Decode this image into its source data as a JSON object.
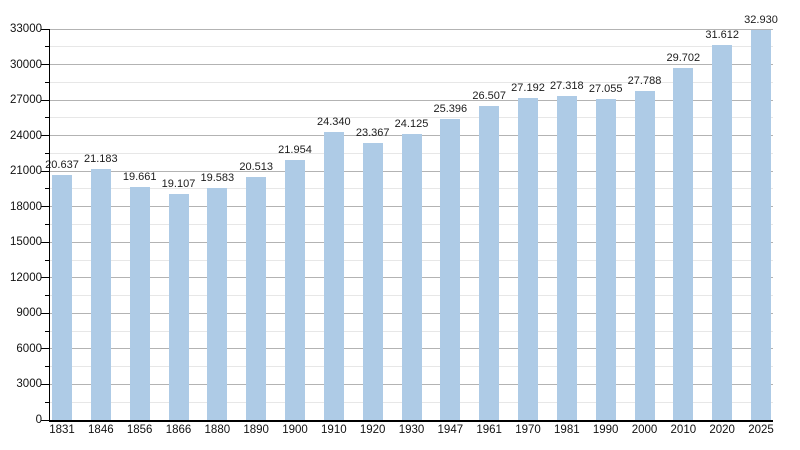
{
  "chart_data": {
    "type": "bar",
    "title": "",
    "xlabel": "",
    "ylabel": "",
    "categories": [
      "1831",
      "1846",
      "1856",
      "1866",
      "1880",
      "1890",
      "1900",
      "1910",
      "1920",
      "1930",
      "1947",
      "1961",
      "1970",
      "1981",
      "1990",
      "2000",
      "2010",
      "2020",
      "2025"
    ],
    "values": [
      20637,
      21183,
      19661,
      19107,
      19583,
      20513,
      21954,
      24340,
      23367,
      24125,
      25396,
      26507,
      27192,
      27318,
      27055,
      27788,
      29702,
      31612,
      32930
    ],
    "value_labels": [
      "20.637",
      "21.183",
      "19.661",
      "19.107",
      "19.583",
      "20.513",
      "21.954",
      "24.340",
      "23.367",
      "24.125",
      "25.396",
      "26.507",
      "27.192",
      "27.318",
      "27.055",
      "27.788",
      "29.702",
      "31.612",
      "32.930"
    ],
    "ylim": [
      0,
      33000
    ],
    "y_major_step": 3000,
    "y_minor_step": 1500,
    "y_tick_labels": [
      "0",
      "3000",
      "6000",
      "9000",
      "12000",
      "15000",
      "18000",
      "21000",
      "24000",
      "27000",
      "30000",
      "33000"
    ],
    "grid": "horizontal, major and minor, behind bars",
    "legend": "none",
    "colors": {
      "bar_fill": "#aecbe6",
      "major_grid": "#b3b3b3",
      "minor_grid": "#e7e7e7",
      "axis": "#000000",
      "text": "#111111",
      "background": "#ffffff"
    }
  }
}
